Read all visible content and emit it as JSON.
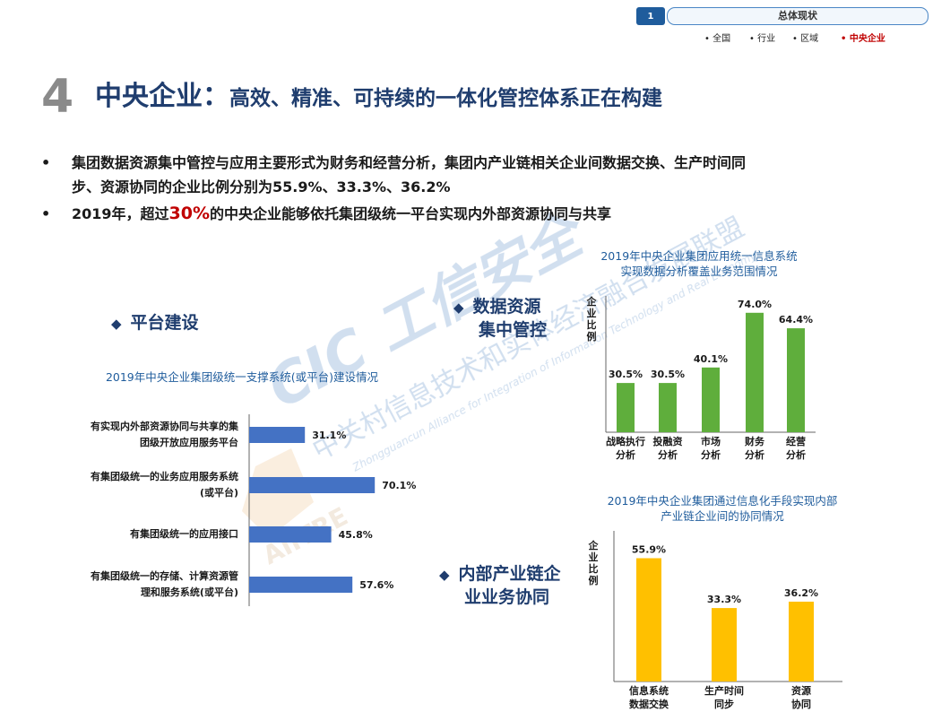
{
  "nav": {
    "page_number": "1",
    "section_title": "总体现状",
    "links": [
      {
        "label": "• 全国",
        "active": false
      },
      {
        "label": "• 行业",
        "active": false
      },
      {
        "label": "• 区域",
        "active": false
      },
      {
        "label": "• 中央企业",
        "active": true
      }
    ]
  },
  "header": {
    "number": "4",
    "title_main": "中央企业：",
    "title_sub": "高效、精准、可持续的一体化管控体系正在构建"
  },
  "bullets": {
    "dot": "•",
    "b1_line1": "集团数据资源集中管控与应用主要形式为财务和经营分析，集团内产业链相关企业间数据交换、生产时间同",
    "b1_line2": "步、资源协同的企业比例分别为55.9%、33.3%、36.2%",
    "b2_pre": "2019年，超过",
    "b2_highlight": "30%",
    "b2_post": "的中央企业能够依托集团级统一平台实现内外部资源协同与共享"
  },
  "watermark": {
    "brand": "CIC 工信安全",
    "alliance_cn": "中关村信息技术和实体经济融合发展联盟",
    "alliance_en": "Zhongguancun Alliance for Integration of Information Technology and Real Economy",
    "aiitre": "AIITRE"
  },
  "sections": {
    "platform": {
      "diamond": "◆",
      "label": "平台建设"
    },
    "data_control": {
      "diamond": "◆",
      "label_line1": "数据资源",
      "label_line2": "集中管控"
    },
    "internal": {
      "diamond": "◆",
      "label_line1": "内部产业链企",
      "label_line2": "业业务协同"
    }
  },
  "colors": {
    "blue_bar": "#4472c4",
    "green_bar": "#5fae3c",
    "yellow_bar": "#ffc000",
    "title_navy": "#1f3d6e",
    "accent_red": "#c00000"
  },
  "chart_data": [
    {
      "type": "bar",
      "orientation": "horizontal",
      "title": "2019年中央企业集团级统一支撑系统(或平台)建设情况",
      "categories": [
        [
          "有实现内外部资源协同与共享的集",
          "团级开放应用服务平台"
        ],
        [
          "有集团级统一的业务应用服务系统",
          "(或平台)"
        ],
        [
          "有集团级统一的应用接口"
        ],
        [
          "有集团级统一的存储、计算资源管",
          "理和服务系统(或平台)"
        ]
      ],
      "values": [
        31.1,
        70.1,
        45.8,
        57.6
      ],
      "value_labels": [
        "31.1%",
        "70.1%",
        "45.8%",
        "57.6%"
      ],
      "xlim": [
        0,
        100
      ],
      "color": "#4472c4"
    },
    {
      "type": "bar",
      "title": [
        "2019年中央企业集团应用统一信息系统",
        "实现数据分析覆盖业务范围情况"
      ],
      "ylabel": [
        "企",
        "业",
        "比",
        "例"
      ],
      "categories": [
        [
          "战略执行",
          "分析"
        ],
        [
          "投融资",
          "分析"
        ],
        [
          "市场",
          "分析"
        ],
        [
          "财务",
          "分析"
        ],
        [
          "经营",
          "分析"
        ]
      ],
      "values": [
        30.5,
        30.5,
        40.1,
        74.0,
        64.4
      ],
      "value_labels": [
        "30.5%",
        "30.5%",
        "40.1%",
        "74.0%",
        "64.4%"
      ],
      "ylim": [
        0,
        80
      ],
      "color": "#5fae3c"
    },
    {
      "type": "bar",
      "title": [
        "2019年中央企业集团通过信息化手段实现内部",
        "产业链企业间的协同情况"
      ],
      "ylabel": [
        "企",
        "业",
        "比",
        "例"
      ],
      "categories": [
        [
          "信息系统",
          "数据交换"
        ],
        [
          "生产时间",
          "同步"
        ],
        [
          "资源",
          "协同"
        ]
      ],
      "values": [
        55.9,
        33.3,
        36.2
      ],
      "value_labels": [
        "55.9%",
        "33.3%",
        "36.2%"
      ],
      "ylim": [
        0,
        62
      ],
      "color": "#ffc000"
    }
  ]
}
